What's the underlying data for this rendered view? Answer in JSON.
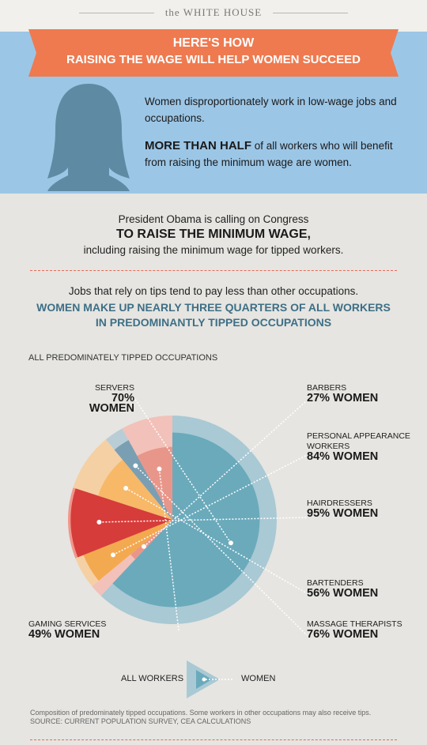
{
  "header": {
    "brand": "the WHITE HOUSE"
  },
  "banner": {
    "line1": "HERE'S HOW",
    "line2": "RAISING THE WAGE WILL HELP WOMEN SUCCEED"
  },
  "intro": {
    "p1": "Women disproportionately work in low-wage jobs and occupations.",
    "p2_bold": "MORE THAN HALF",
    "p2_rest": " of all workers who will benefit from raising the minimum wage are women."
  },
  "congress": {
    "line1": "President Obama is calling on Congress",
    "line2": "TO RAISE THE MINIMUM WAGE,",
    "line3": "including raising the minimum wage for tipped workers."
  },
  "tips": {
    "line1": "Jobs that rely on tips tend to pay less than other occupations.",
    "line2": "WOMEN MAKE UP NEARLY THREE QUARTERS OF ALL WORKERS",
    "line3": "IN PREDOMINANTLY TIPPED OCCUPATIONS"
  },
  "legend": {
    "all_workers": "ALL WORKERS",
    "women": "WOMEN"
  },
  "footer": {
    "note": "Composition of predominately tipped occupations. Some workers in other occupations may also receive tips.",
    "source": "SOURCE: CURRENT POPULATION SURVEY, CEA CALCULATIONS"
  },
  "chart_data": {
    "type": "pie",
    "title": "ALL PREDOMINATELY TIPPED OCCUPATIONS",
    "value_suffix": "% WOMEN",
    "series": [
      {
        "name": "ALL WORKERS",
        "values": [
          62,
          2,
          5,
          11,
          9,
          3,
          8
        ]
      },
      {
        "name": "WOMEN",
        "values": [
          70,
          27,
          84,
          95,
          56,
          76,
          49
        ]
      }
    ],
    "categories": [
      "SERVERS",
      "BARBERS",
      "PERSONAL APPEARANCE WORKERS",
      "HAIRDRESSERS",
      "BARTENDERS",
      "MASSAGE THERAPISTS",
      "GAMING SERVICES"
    ],
    "colors": {
      "SERVERS": [
        "#a9c9d4",
        "#6aaabb"
      ],
      "BARBERS": [
        "#f2c1b9",
        "#e9968a"
      ],
      "PERSONAL APPEARANCE WORKERS": [
        "#f5d0a4",
        "#f3a94f"
      ],
      "HAIRDRESSERS": [
        "#f0968c",
        "#d63c3a"
      ],
      "BARTENDERS": [
        "#f5d0a4",
        "#f7b868"
      ],
      "MASSAGE THERAPISTS": [
        "#b9cdd6",
        "#7a9fb2"
      ],
      "GAMING SERVICES": [
        "#f2c1b9",
        "#e9968a"
      ]
    },
    "accent": "#ef7a4f",
    "sky": "#9cc6e6",
    "silhouette": "#5e8ba3"
  }
}
